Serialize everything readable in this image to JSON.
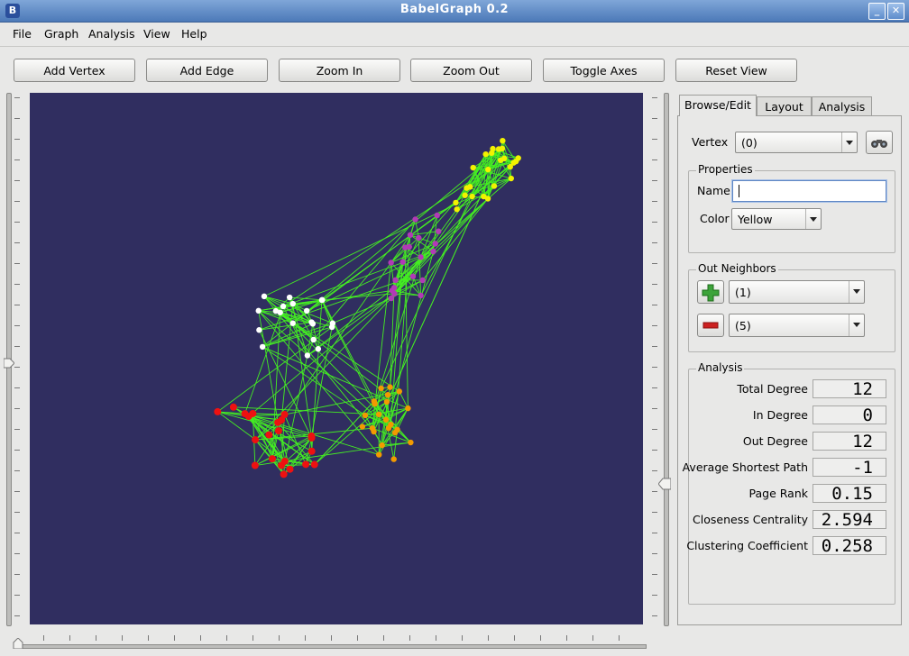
{
  "window": {
    "title": "BabelGraph 0.2",
    "icon_letter": "B"
  },
  "menu": [
    "File",
    "Graph",
    "Analysis",
    "View",
    "Help"
  ],
  "toolbar": [
    "Add Vertex",
    "Add Edge",
    "Zoom In",
    "Zoom Out",
    "Toggle Axes",
    "Reset View"
  ],
  "tabs": [
    "Browse/Edit",
    "Layout",
    "Analysis"
  ],
  "browse": {
    "vertex_label": "Vertex",
    "vertex_value": "(0)",
    "properties_title": "Properties",
    "name_label": "Name",
    "name_value": "",
    "color_label": "Color",
    "color_value": "Yellow",
    "neighbors_title": "Out Neighbors",
    "add_neighbor_value": "(1)",
    "remove_neighbor_value": "(5)"
  },
  "analysis": {
    "title": "Analysis",
    "metrics": [
      {
        "label": "Total Degree",
        "value": "12"
      },
      {
        "label": "In Degree",
        "value": "0"
      },
      {
        "label": "Out Degree",
        "value": "12"
      },
      {
        "label": "Average Shortest Path",
        "value": "-1"
      },
      {
        "label": "Page Rank",
        "value": "0.15"
      },
      {
        "label": "Closeness Centrality",
        "value": "2.594"
      },
      {
        "label": "Clustering Coefficient",
        "value": "0.258"
      }
    ]
  },
  "colors": {
    "canvas_bg": "#302e60",
    "edge": "#44ee22",
    "yellow": "#f2f200",
    "purple": "#b23ab6",
    "white": "#ffffff",
    "red": "#ee1111",
    "orange": "#f29a00"
  }
}
